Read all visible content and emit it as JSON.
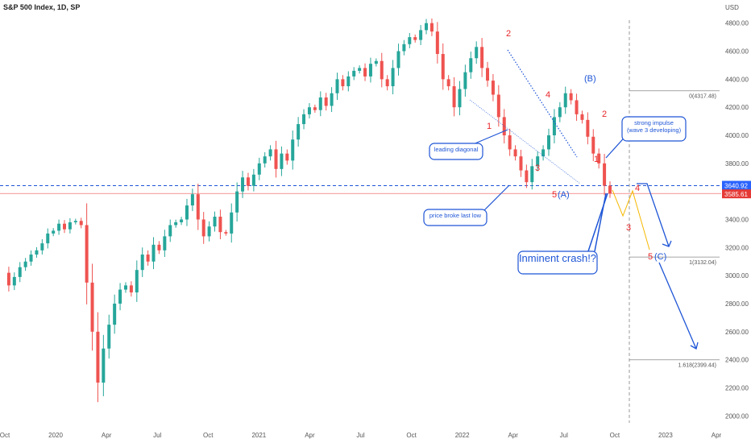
{
  "chart_data": {
    "type": "line",
    "title": "S&P 500 Index, 1D, SP",
    "currency_label": "USD",
    "x_ticks": [
      "Oct",
      "2020",
      "Apr",
      "Jul",
      "Oct",
      "2021",
      "Apr",
      "Jul",
      "Oct",
      "2022",
      "Apr",
      "Jul",
      "Oct",
      "2023",
      "Apr"
    ],
    "y_ticks": [
      2000,
      2200,
      2400,
      2600,
      2800,
      3000,
      3200,
      3400,
      3600,
      3800,
      4000,
      4200,
      4400,
      4600,
      4800
    ],
    "ylim": [
      1950,
      4850
    ],
    "series": [
      {
        "values": [
          3020,
          2930,
          2990,
          3060,
          3100,
          3150,
          3180,
          3230,
          3300,
          3320,
          3370,
          3330,
          3380,
          3390,
          3360,
          2950,
          2600,
          2237,
          2480,
          2650,
          2800,
          2900,
          2930,
          2880,
          3040,
          3150,
          3100,
          3220,
          3180,
          3280,
          3360,
          3380,
          3400,
          3500,
          3580,
          3400,
          3280,
          3350,
          3420,
          3310,
          3300,
          3450,
          3600,
          3700,
          3640,
          3720,
          3800,
          3850,
          3900,
          3760,
          3870,
          3820,
          3970,
          4080,
          4150,
          4200,
          4180,
          4270,
          4210,
          4300,
          4400,
          4350,
          4420,
          4460,
          4480,
          4420,
          4510,
          4530,
          4400,
          4350,
          4480,
          4600,
          4650,
          4700,
          4680,
          4750,
          4800,
          4740,
          4580,
          4400,
          4350,
          4200,
          4330,
          4450,
          4550,
          4630,
          4480,
          4390,
          4290,
          4130,
          4000,
          3900,
          3850,
          3750,
          3666,
          3780,
          3850,
          3900,
          4000,
          4130,
          4200,
          4300,
          4250,
          4150,
          4110,
          3990,
          3870,
          3800,
          3640.92,
          3585.61
        ]
      }
    ],
    "current_price": "3640.92",
    "last_low_price": "3585.61",
    "wave_labels": {
      "w1a": "1",
      "w2a": "2",
      "w3a": "3",
      "w4a": "4",
      "w5a": "5",
      "A": "(A)",
      "B": "(B)",
      "w1c": "1",
      "w2c": "2",
      "w3c": "3",
      "w4c": "4",
      "w5c": "5",
      "C": "(C)"
    },
    "fib_levels": [
      {
        "label": "0(4317.48)",
        "value": 4317.48
      },
      {
        "label": "1(3132.04)",
        "value": 3132.04
      },
      {
        "label": "1.618(2399.44)",
        "value": 2399.44
      }
    ],
    "annotations": {
      "leading_diagonal": "leading diagonal",
      "price_broke": "price broke last low",
      "impulse_line1": "strong impulse",
      "impulse_line2": "(wave 3 developing)",
      "crash": "Inminent crash!?"
    }
  },
  "colors": {
    "up": "#26a69a",
    "down": "#ef5350",
    "red_label": "#e8262a",
    "blue": "#1e55d6",
    "projection": "#f5b800",
    "price_tag": "#2962ff",
    "low_tag": "#e53935"
  }
}
